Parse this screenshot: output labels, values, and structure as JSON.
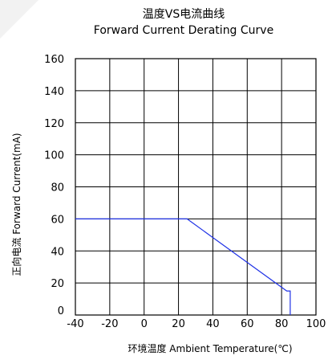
{
  "chart_data": {
    "type": "line",
    "title_cn": "温度VS电流曲线",
    "title": "Forward Current Derating Curve",
    "xlabel": "环境温度  Ambient Temperature(℃)",
    "ylabel": "正向电流 Forward Current(mA)",
    "xlim": [
      -40,
      100
    ],
    "ylim": [
      0,
      160
    ],
    "x_ticks": [
      "-40",
      "-20",
      "0",
      "20",
      "40",
      "60",
      "80",
      "100"
    ],
    "y_ticks": [
      "0",
      "20",
      "40",
      "60",
      "80",
      "100",
      "120",
      "140",
      "160"
    ],
    "grid": true,
    "line_color": "#1f32e6",
    "series": [
      {
        "x": [
          -40,
          25,
          83,
          85,
          85
        ],
        "y": [
          60,
          60,
          15,
          15,
          0
        ]
      }
    ]
  }
}
